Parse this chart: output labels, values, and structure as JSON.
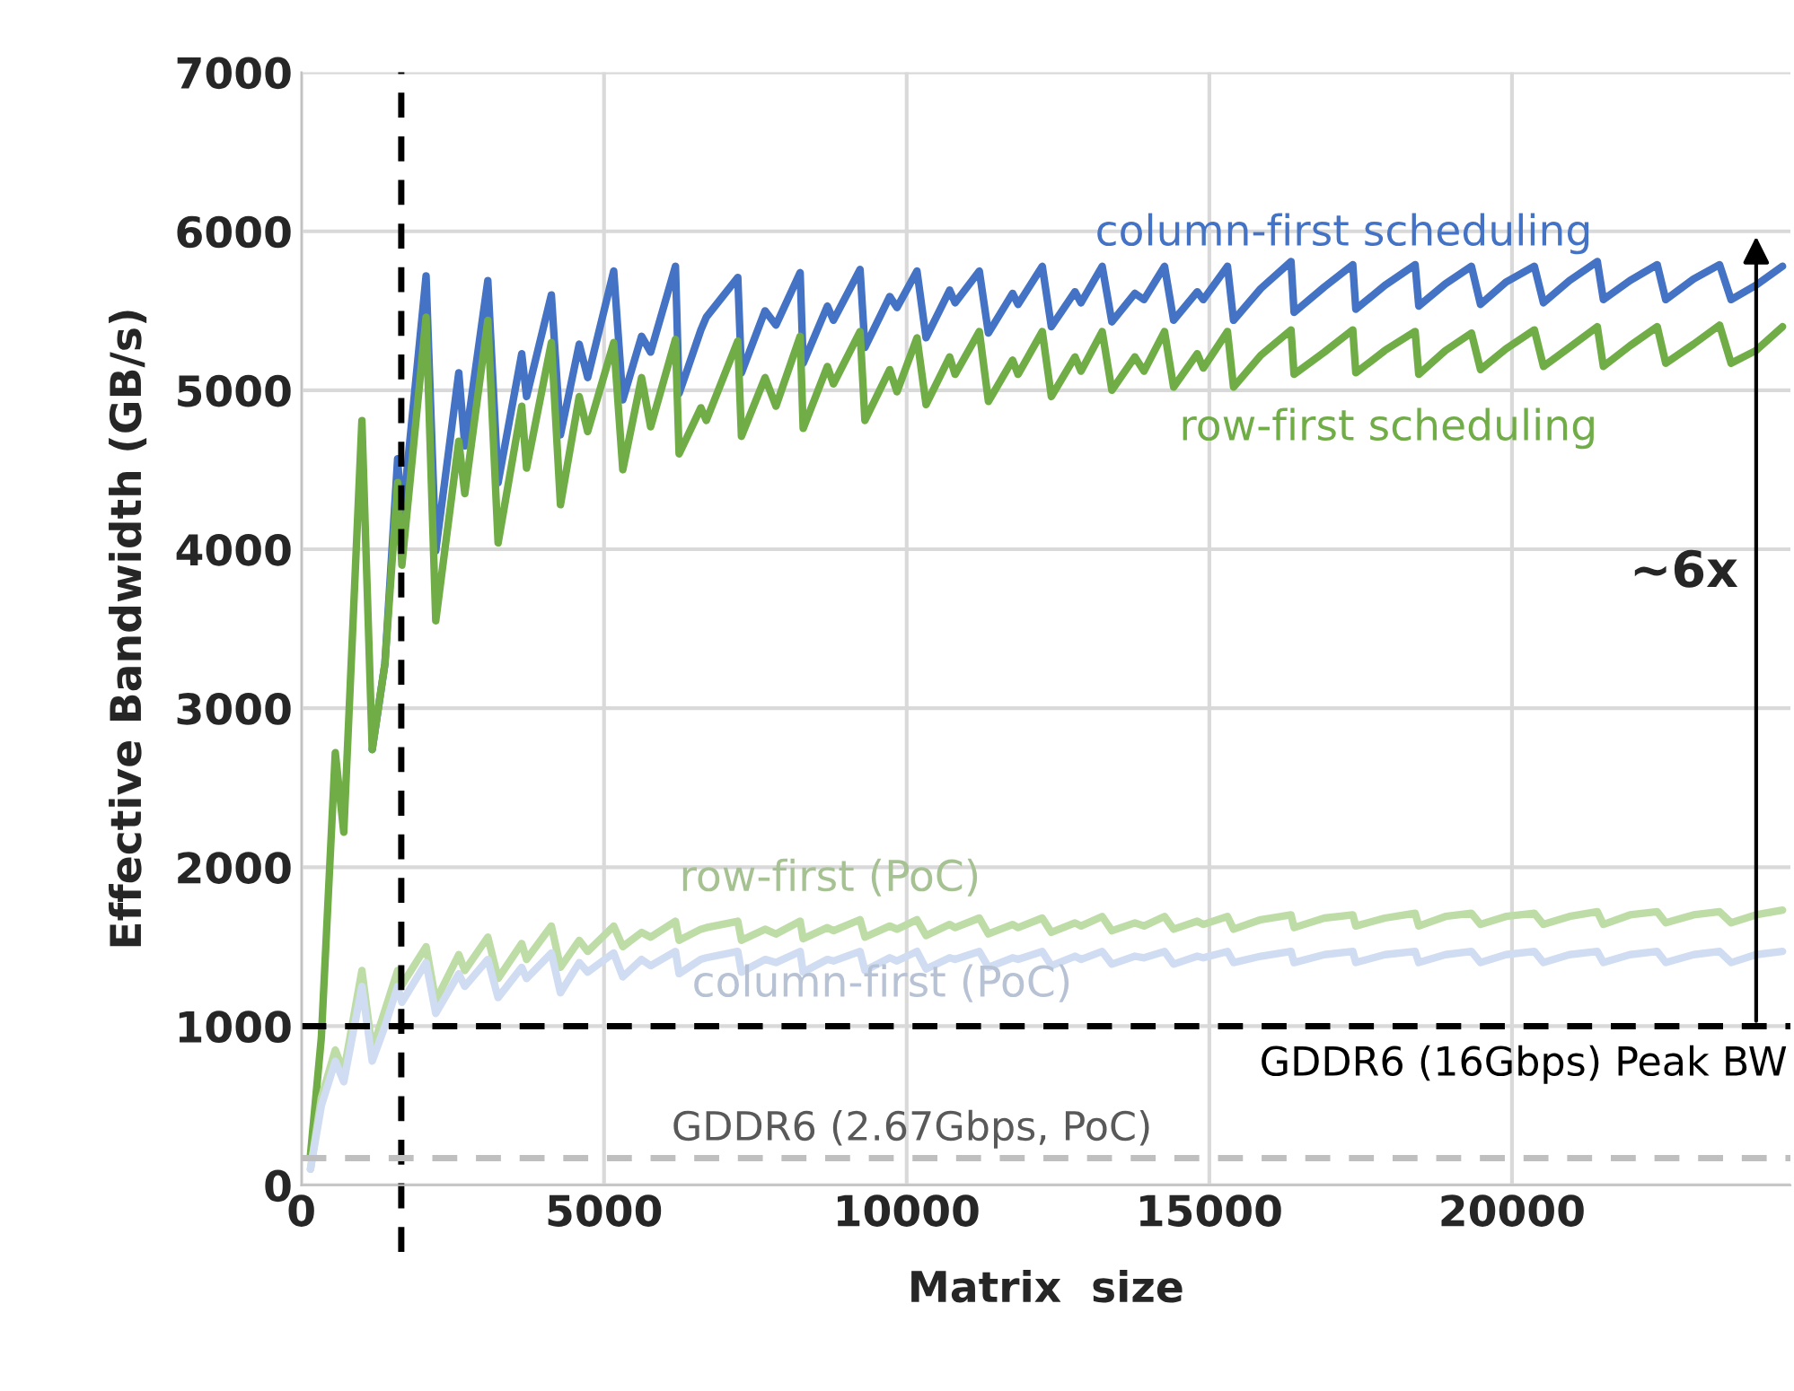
{
  "chart_data": {
    "type": "line",
    "xlabel": "Matrix  size",
    "ylabel": "Effective Bandwidth (GB/s)",
    "x": [
      150,
      330,
      560,
      700,
      1000,
      1170,
      1380,
      1590,
      1660,
      2060,
      2220,
      2600,
      2700,
      3080,
      3250,
      3640,
      3720,
      4130,
      4280,
      4590,
      4730,
      5160,
      5310,
      5620,
      5770,
      6180,
      6240,
      6600,
      6690,
      7210,
      7270,
      7660,
      7840,
      8240,
      8290,
      8690,
      8790,
      9230,
      9310,
      9720,
      9840,
      10170,
      10320,
      10710,
      10800,
      11200,
      11350,
      11750,
      11840,
      12240,
      12390,
      12780,
      12880,
      13230,
      13390,
      13770,
      13920,
      14260,
      14410,
      14800,
      14900,
      15300,
      15400,
      15850,
      16350,
      16400,
      16900,
      17370,
      17420,
      17900,
      18400,
      18460,
      18900,
      19330,
      19480,
      19900,
      20370,
      20520,
      20950,
      21410,
      21510,
      21950,
      22400,
      22540,
      23000,
      23430,
      23620,
      24030,
      24470
    ],
    "series": [
      {
        "name": "column-first scheduling",
        "color": "#4472c4",
        "values": [
          null,
          null,
          null,
          null,
          null,
          2740,
          3280,
          4570,
          4170,
          5720,
          3990,
          5110,
          4650,
          5690,
          4420,
          5230,
          4960,
          5600,
          4720,
          5290,
          5080,
          5750,
          4940,
          5340,
          5240,
          5780,
          4980,
          5380,
          5460,
          5710,
          5110,
          5500,
          5410,
          5740,
          5170,
          5530,
          5440,
          5760,
          5270,
          5590,
          5520,
          5750,
          5330,
          5630,
          5550,
          5750,
          5360,
          5610,
          5540,
          5780,
          5400,
          5620,
          5550,
          5780,
          5430,
          5610,
          5570,
          5780,
          5440,
          5620,
          5570,
          5780,
          5440,
          5640,
          5810,
          5490,
          5650,
          5790,
          5510,
          5660,
          5790,
          5530,
          5670,
          5780,
          5540,
          5680,
          5780,
          5550,
          5690,
          5810,
          5570,
          5690,
          5790,
          5570,
          5700,
          5790,
          5570,
          5660,
          5780
        ]
      },
      {
        "name": "row-first scheduling",
        "color": "#70ad47",
        "values": [
          190,
          930,
          2720,
          2220,
          4810,
          2740,
          3280,
          4420,
          3900,
          5460,
          3550,
          4680,
          4350,
          5440,
          4040,
          4900,
          4510,
          5300,
          4280,
          4960,
          4740,
          5300,
          4500,
          5080,
          4770,
          5320,
          4600,
          4890,
          4810,
          5310,
          4710,
          5080,
          4900,
          5340,
          4760,
          5150,
          5040,
          5370,
          4810,
          5130,
          4990,
          5330,
          4910,
          5210,
          5100,
          5370,
          4930,
          5190,
          5100,
          5370,
          4960,
          5210,
          5120,
          5370,
          5000,
          5210,
          5120,
          5370,
          5020,
          5230,
          5140,
          5370,
          5020,
          5220,
          5380,
          5100,
          5240,
          5380,
          5110,
          5250,
          5370,
          5100,
          5250,
          5360,
          5130,
          5260,
          5380,
          5150,
          5270,
          5400,
          5150,
          5280,
          5400,
          5170,
          5290,
          5410,
          5170,
          5250,
          5400
        ]
      },
      {
        "name": "row-first (PoC)",
        "color": "#bddca6",
        "values": [
          100,
          550,
          850,
          710,
          1350,
          850,
          1100,
          1350,
          1260,
          1500,
          1160,
          1450,
          1350,
          1560,
          1300,
          1520,
          1420,
          1630,
          1370,
          1540,
          1470,
          1630,
          1500,
          1590,
          1560,
          1660,
          1540,
          1610,
          1620,
          1660,
          1540,
          1610,
          1580,
          1660,
          1550,
          1620,
          1600,
          1670,
          1560,
          1630,
          1610,
          1670,
          1570,
          1640,
          1620,
          1680,
          1580,
          1640,
          1620,
          1680,
          1590,
          1650,
          1630,
          1690,
          1600,
          1650,
          1630,
          1690,
          1610,
          1660,
          1640,
          1690,
          1610,
          1670,
          1700,
          1620,
          1680,
          1700,
          1630,
          1680,
          1710,
          1630,
          1690,
          1710,
          1640,
          1690,
          1710,
          1640,
          1690,
          1720,
          1640,
          1700,
          1720,
          1650,
          1700,
          1720,
          1650,
          1700,
          1730
        ]
      },
      {
        "name": "column-first (PoC)",
        "color": "#d0dcf2",
        "values": [
          100,
          500,
          780,
          650,
          1250,
          780,
          1000,
          1250,
          1150,
          1400,
          1080,
          1330,
          1250,
          1420,
          1180,
          1370,
          1300,
          1460,
          1210,
          1400,
          1340,
          1460,
          1310,
          1420,
          1380,
          1470,
          1330,
          1420,
          1430,
          1470,
          1340,
          1420,
          1400,
          1470,
          1340,
          1420,
          1410,
          1470,
          1350,
          1430,
          1410,
          1470,
          1360,
          1430,
          1420,
          1470,
          1370,
          1430,
          1420,
          1470,
          1380,
          1440,
          1420,
          1470,
          1390,
          1440,
          1430,
          1470,
          1390,
          1440,
          1430,
          1470,
          1400,
          1440,
          1470,
          1400,
          1450,
          1470,
          1400,
          1450,
          1470,
          1400,
          1450,
          1470,
          1400,
          1450,
          1470,
          1400,
          1450,
          1470,
          1400,
          1450,
          1470,
          1400,
          1450,
          1470,
          1400,
          1450,
          1470
        ]
      }
    ],
    "xlim": [
      0,
      24600
    ],
    "xticks": [
      0,
      5000,
      10000,
      15000,
      20000
    ],
    "ylim": [
      0,
      7000
    ],
    "yticks": [
      0,
      1000,
      2000,
      3000,
      4000,
      5000,
      6000,
      7000
    ],
    "grid": true,
    "legend": false,
    "ref_lines": [
      {
        "axis": "x",
        "value": 1650,
        "color": "#000000",
        "line_style": "dashed"
      },
      {
        "axis": "y",
        "value": 1000,
        "label": "GDDR6 (16Gbps) Peak BW",
        "color": "#000000",
        "line_style": "dashed"
      },
      {
        "axis": "y",
        "value": 170,
        "label": "GDDR6 (2.67Gbps, PoC)",
        "color": "#bfbfbf",
        "line_style": "dashed"
      }
    ],
    "annotations": [
      "~6x"
    ]
  }
}
